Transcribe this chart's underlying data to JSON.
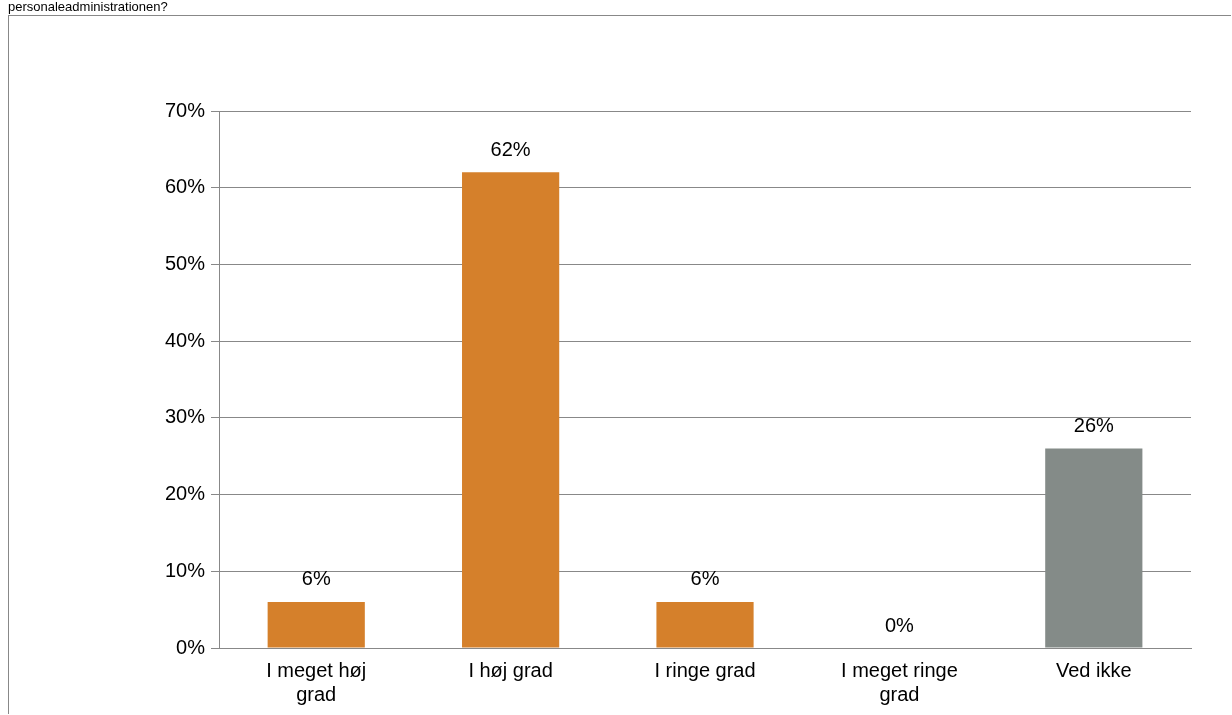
{
  "chart_data": {
    "type": "bar",
    "title": "personaleadministrationen?",
    "categories": [
      "I meget høj grad",
      "I høj grad",
      "I ringe grad",
      "I meget ringe grad",
      "Ved ikke"
    ],
    "values": [
      6,
      62,
      6,
      0,
      26
    ],
    "colors": [
      "#d5802b",
      "#d5802b",
      "#d5802b",
      "#d5802b",
      "#848b88"
    ],
    "value_labels": [
      "6%",
      "62%",
      "6%",
      "0%",
      "26%"
    ],
    "ylim": [
      0,
      70
    ],
    "yticks": [
      {
        "value": 0,
        "label": "0%"
      },
      {
        "value": 10,
        "label": "10%"
      },
      {
        "value": 20,
        "label": "20%"
      },
      {
        "value": 30,
        "label": "30%"
      },
      {
        "value": 40,
        "label": "40%"
      },
      {
        "value": 50,
        "label": "50%"
      },
      {
        "value": 60,
        "label": "60%"
      },
      {
        "value": 70,
        "label": "70%"
      }
    ],
    "grid": "y",
    "legend": false
  }
}
